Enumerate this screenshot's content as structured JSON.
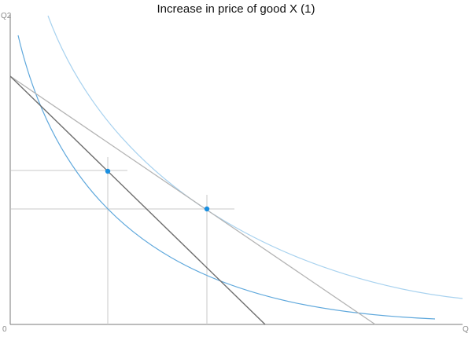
{
  "title": "Increase in price of good X (1)",
  "axes": {
    "origin_label": "0",
    "x_label": "Q",
    "y_label": "Q2"
  },
  "colors": {
    "axis": "#7a7a7a",
    "guide": "#c9c9c9",
    "budget_line_original": "#b4b4b4",
    "budget_line_new": "#6e6e6e",
    "indifference_curve_high": "#a8d2ef",
    "indifference_curve_low": "#5fa8dc",
    "optimum_point": "#1a8fe0"
  }
}
